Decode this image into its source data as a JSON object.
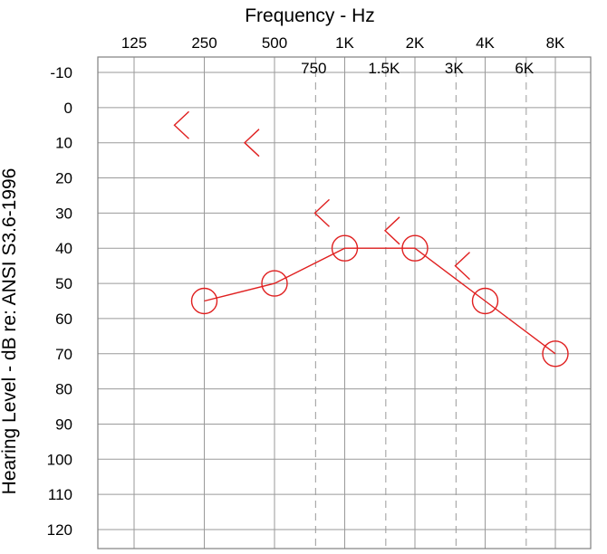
{
  "chart_data": {
    "type": "audiogram",
    "title": "Frequency - Hz",
    "ylabel": "Hearing Level - dB   re: ANSI S3.6-1996",
    "x_major_ticks": [
      {
        "freq": 125,
        "label": "125"
      },
      {
        "freq": 250,
        "label": "250"
      },
      {
        "freq": 500,
        "label": "500"
      },
      {
        "freq": 1000,
        "label": "1K"
      },
      {
        "freq": 2000,
        "label": "2K"
      },
      {
        "freq": 4000,
        "label": "4K"
      },
      {
        "freq": 8000,
        "label": "8K"
      }
    ],
    "x_minor_ticks": [
      {
        "freq": 750,
        "label": "750"
      },
      {
        "freq": 1500,
        "label": "1.5K"
      },
      {
        "freq": 3000,
        "label": "3K"
      },
      {
        "freq": 6000,
        "label": "6K"
      }
    ],
    "y_ticks": [
      -10,
      0,
      10,
      20,
      30,
      40,
      50,
      60,
      70,
      80,
      90,
      100,
      110,
      120
    ],
    "ylim": [
      -10,
      120
    ],
    "y_inverted": true,
    "grid": true,
    "series": [
      {
        "symbol": "circle",
        "connected": true,
        "color": "#e02020",
        "points": [
          {
            "freq": 250,
            "db": 55
          },
          {
            "freq": 500,
            "db": 50
          },
          {
            "freq": 1000,
            "db": 40
          },
          {
            "freq": 2000,
            "db": 40
          },
          {
            "freq": 4000,
            "db": 55
          },
          {
            "freq": 8000,
            "db": 70
          }
        ]
      },
      {
        "symbol": "bone-left",
        "connected": false,
        "color": "#e02020",
        "points": [
          {
            "freq": 250,
            "db": 5
          },
          {
            "freq": 500,
            "db": 10
          },
          {
            "freq": 1000,
            "db": 30
          },
          {
            "freq": 2000,
            "db": 35
          },
          {
            "freq": 4000,
            "db": 45
          }
        ]
      }
    ]
  }
}
